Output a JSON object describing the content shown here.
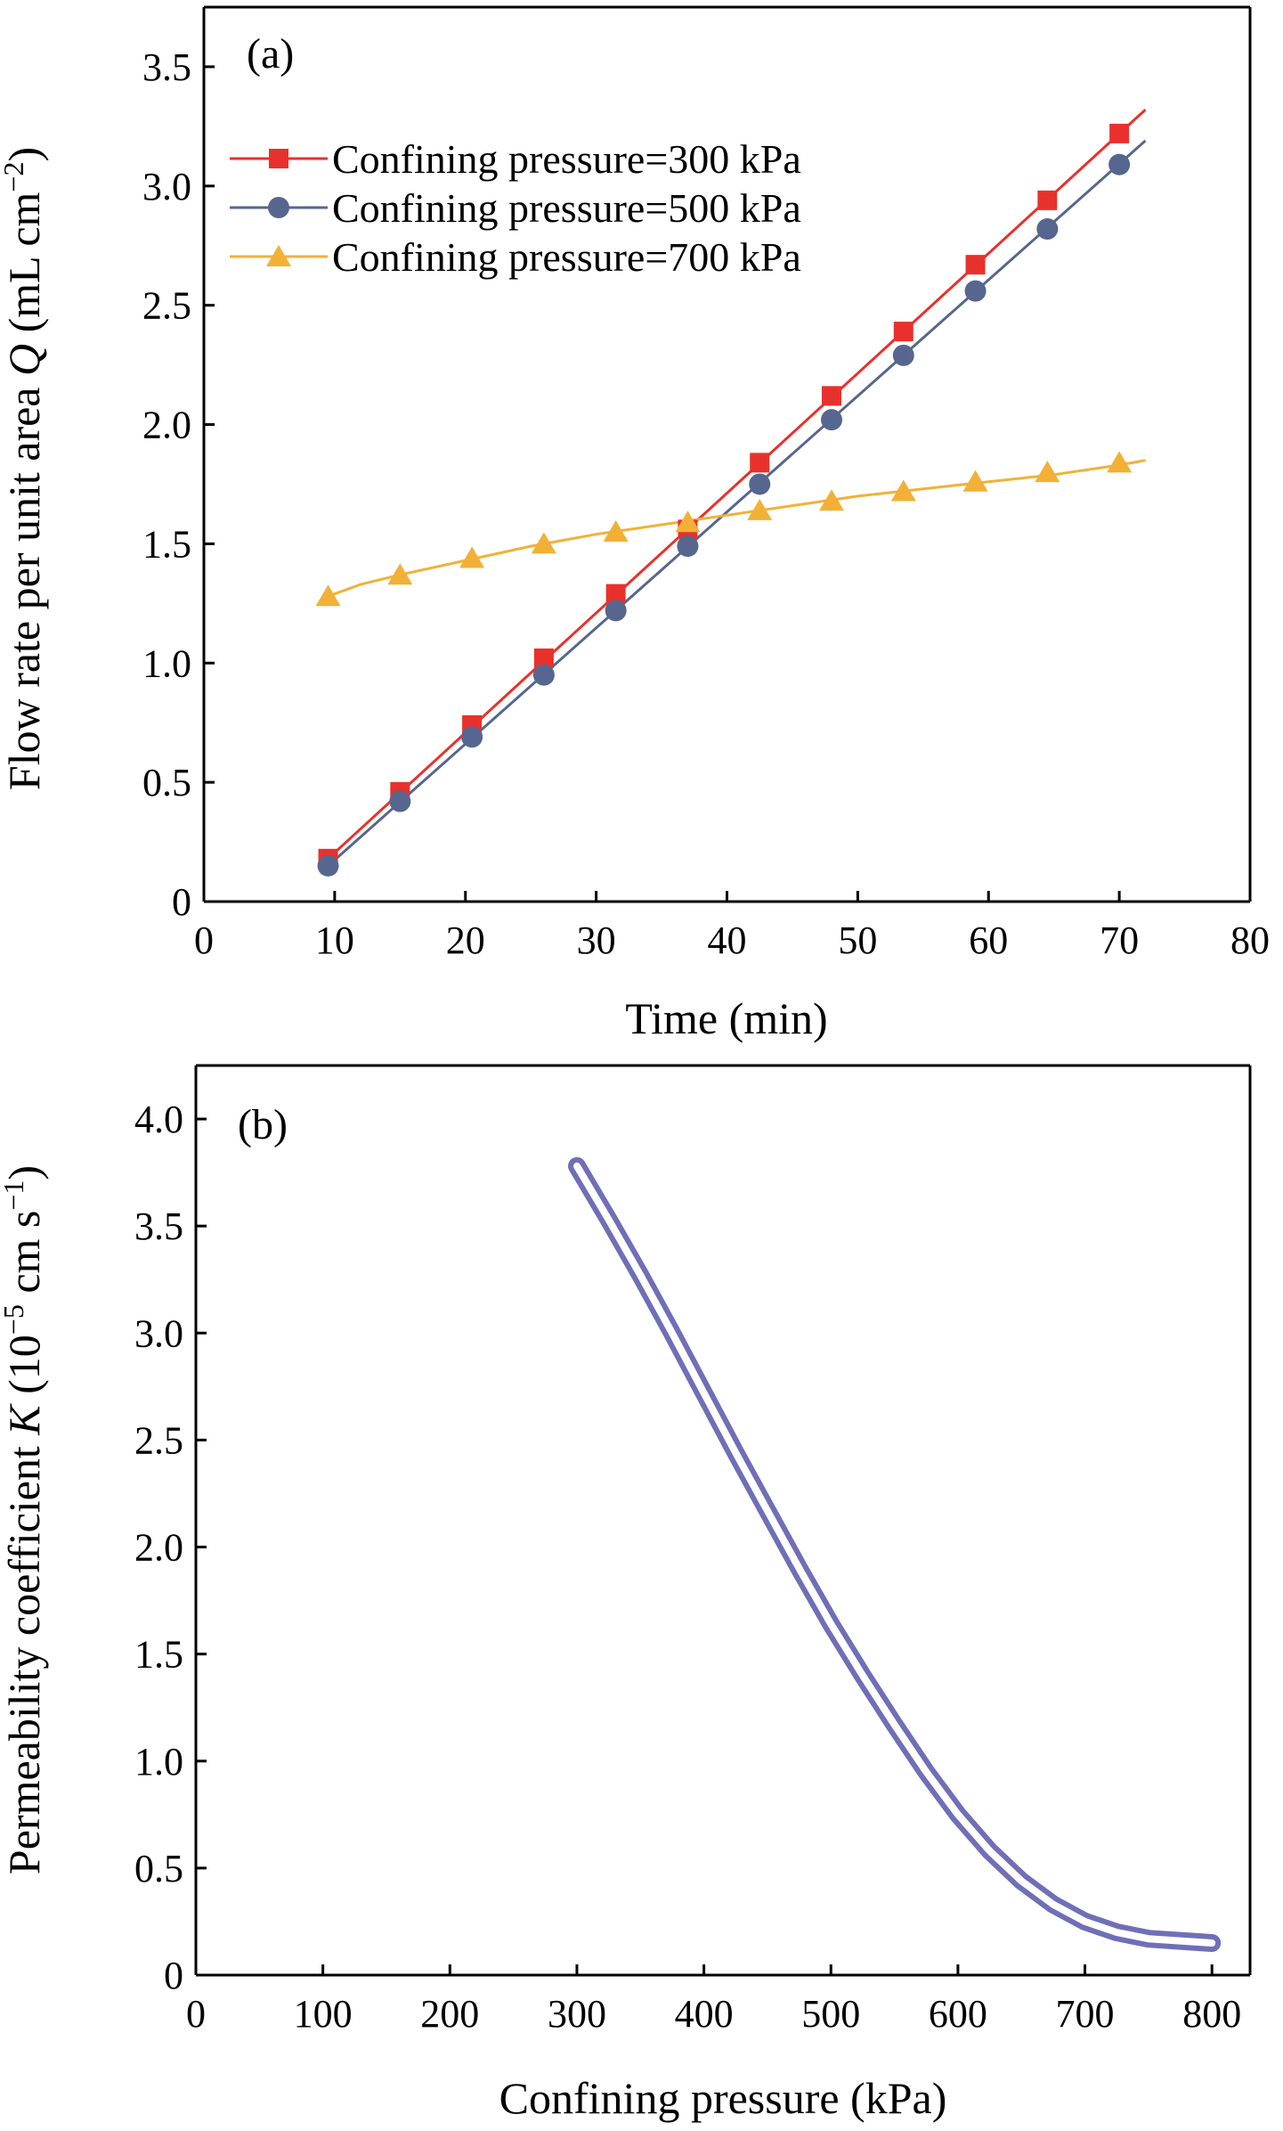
{
  "chart_data": [
    {
      "type": "line",
      "panel_label": "(a)",
      "xlabel": "Time (min)",
      "ylabel_prefix": "Flow rate per unit area ",
      "ylabel_symbol": "Q",
      "ylabel_unit": " (mL cm",
      "ylabel_unit_exp": "−2",
      "ylabel_unit_close": ")",
      "xlim": [
        0,
        80
      ],
      "ylim": [
        0,
        3.75
      ],
      "xticks": [
        "0",
        "10",
        "20",
        "30",
        "40",
        "50",
        "60",
        "70",
        "80"
      ],
      "yticks": [
        "0",
        "0.5",
        "1.0",
        "1.5",
        "2.0",
        "2.5",
        "3.0",
        "3.5"
      ],
      "grid": false,
      "legend_position": "top-left",
      "series": [
        {
          "name": "Confining pressure=300 kPa",
          "color": "#e8312d",
          "marker": "square",
          "x": [
            9.5,
            15,
            20.5,
            26,
            31.5,
            37,
            42.5,
            48,
            53.5,
            59,
            64.5,
            70
          ],
          "y": [
            0.18,
            0.46,
            0.74,
            1.02,
            1.29,
            1.56,
            1.84,
            2.12,
            2.39,
            2.67,
            2.94,
            3.22
          ],
          "fit_x": [
            9.5,
            72
          ],
          "fit_y": [
            0.18,
            3.32
          ]
        },
        {
          "name": "Confining pressure=500 kPa",
          "color": "#56668f",
          "marker": "circle",
          "x": [
            9.5,
            15,
            20.5,
            26,
            31.5,
            37,
            42.5,
            48,
            53.5,
            59,
            64.5,
            70
          ],
          "y": [
            0.15,
            0.42,
            0.69,
            0.95,
            1.22,
            1.49,
            1.75,
            2.02,
            2.29,
            2.56,
            2.82,
            3.09
          ],
          "fit_x": [
            9.5,
            72
          ],
          "fit_y": [
            0.15,
            3.19
          ]
        },
        {
          "name": "Confining pressure=700 kPa",
          "color": "#f2b136",
          "marker": "triangle",
          "x": [
            9.5,
            15,
            20.5,
            26,
            31.5,
            37,
            42.5,
            48,
            53.5,
            59,
            64.5,
            70
          ],
          "y": [
            1.28,
            1.37,
            1.44,
            1.5,
            1.55,
            1.59,
            1.64,
            1.68,
            1.72,
            1.76,
            1.8,
            1.84
          ],
          "fit_x": [
            9.5,
            12,
            15,
            20,
            25,
            30,
            35,
            40,
            45,
            50,
            55,
            60,
            65,
            70,
            72
          ],
          "fit_y": [
            1.28,
            1.33,
            1.37,
            1.43,
            1.49,
            1.54,
            1.58,
            1.62,
            1.66,
            1.7,
            1.73,
            1.76,
            1.79,
            1.83,
            1.85
          ]
        }
      ]
    },
    {
      "type": "line",
      "panel_label": "(b)",
      "xlabel": "Confining pressure (kPa)",
      "ylabel_prefix": "Permeability coefficient ",
      "ylabel_symbol": "K",
      "ylabel_unit": " (10",
      "ylabel_unit_exp": "−5",
      "ylabel_unit_mid": " cm s",
      "ylabel_unit_exp2": "−1",
      "ylabel_unit_close": ")",
      "xlim": [
        0,
        830
      ],
      "ylim": [
        0,
        4.25
      ],
      "xticks": [
        "0",
        "100",
        "200",
        "300",
        "400",
        "500",
        "600",
        "700",
        "800"
      ],
      "yticks": [
        "0",
        "0.5",
        "1.0",
        "1.5",
        "2.0",
        "2.5",
        "3.0",
        "3.5",
        "4.0"
      ],
      "grid": false,
      "series": [
        {
          "color": "#6f6fb8",
          "style": "double-line",
          "x": [
            300,
            325,
            350,
            375,
            400,
            425,
            450,
            475,
            500,
            525,
            550,
            575,
            600,
            625,
            650,
            675,
            700,
            725,
            750,
            775,
            800
          ],
          "y": [
            3.78,
            3.53,
            3.27,
            3.0,
            2.72,
            2.44,
            2.17,
            1.9,
            1.64,
            1.4,
            1.17,
            0.95,
            0.75,
            0.58,
            0.44,
            0.33,
            0.25,
            0.2,
            0.17,
            0.16,
            0.15
          ]
        }
      ]
    }
  ]
}
